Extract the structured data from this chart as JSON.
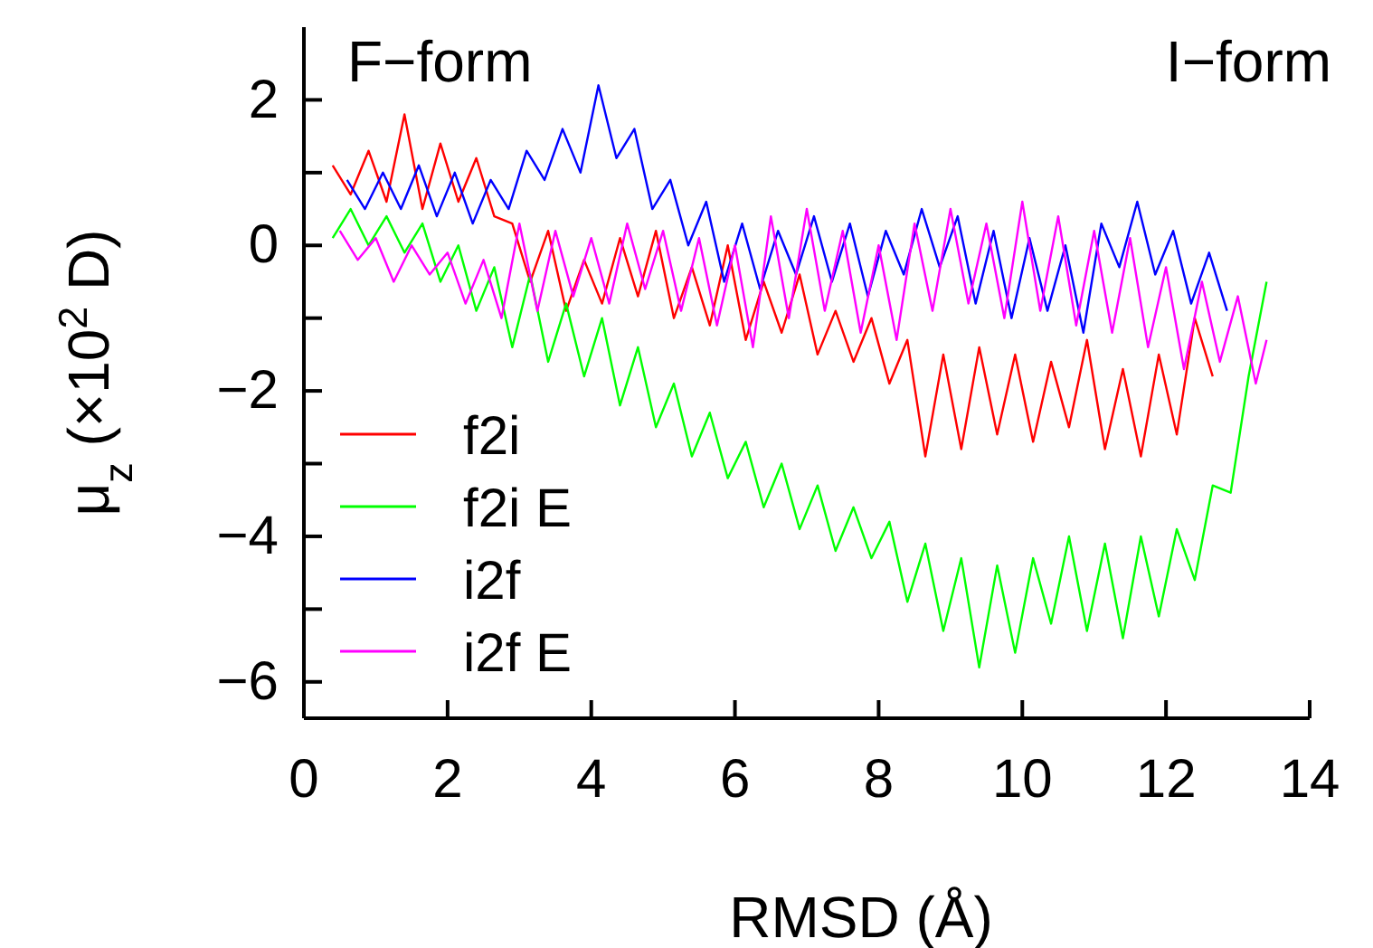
{
  "chart_data": {
    "type": "line",
    "xlabel": "RMSD (Å)",
    "ylabel": "μ$_{z}$ (×10$^{2}$ D)",
    "annotations": [
      "F−form",
      "I−form"
    ],
    "xlim": [
      0,
      14
    ],
    "xticks": [
      0,
      2,
      4,
      6,
      8,
      10,
      12,
      14
    ],
    "ylim": [
      -6.5,
      3
    ],
    "yticks": [
      {
        "value": -6,
        "label": "−6"
      },
      {
        "value": -5,
        "label": null
      },
      {
        "value": -4,
        "label": "−4"
      },
      {
        "value": -3,
        "label": null
      },
      {
        "value": -2,
        "label": "−2"
      },
      {
        "value": -1,
        "label": null
      },
      0,
      {
        "value": 1,
        "label": null
      },
      2
    ],
    "grid": false,
    "legend": "bottom left",
    "marker": "none",
    "line_style": "solid",
    "series": [
      {
        "name": "f2i",
        "color": "#ff0000",
        "x": [
          0.4,
          0.65,
          0.9,
          1.15,
          1.4,
          1.65,
          1.9,
          2.15,
          2.4,
          2.65,
          2.9,
          3.15,
          3.4,
          3.65,
          3.9,
          4.15,
          4.4,
          4.65,
          4.9,
          5.15,
          5.4,
          5.65,
          5.9,
          6.15,
          6.4,
          6.65,
          6.9,
          7.15,
          7.4,
          7.65,
          7.9,
          8.15,
          8.4,
          8.65,
          8.9,
          9.15,
          9.4,
          9.65,
          9.9,
          10.15,
          10.4,
          10.65,
          10.9,
          11.15,
          11.4,
          11.65,
          11.9,
          12.15,
          12.4,
          12.65
        ],
        "values": [
          1.1,
          0.7,
          1.3,
          0.6,
          1.8,
          0.5,
          1.4,
          0.6,
          1.2,
          0.4,
          0.3,
          -0.5,
          0.2,
          -0.9,
          -0.2,
          -0.8,
          0.1,
          -0.7,
          0.2,
          -1.0,
          -0.3,
          -1.1,
          0.0,
          -1.3,
          -0.5,
          -1.2,
          -0.4,
          -1.5,
          -0.9,
          -1.6,
          -1.0,
          -1.9,
          -1.3,
          -2.9,
          -1.5,
          -2.8,
          -1.4,
          -2.6,
          -1.5,
          -2.7,
          -1.6,
          -2.5,
          -1.3,
          -2.8,
          -1.7,
          -2.9,
          -1.5,
          -2.6,
          -1.0,
          -1.8
        ]
      },
      {
        "name": "f2i E",
        "color": "#00ff00",
        "x": [
          0.4,
          0.65,
          0.9,
          1.15,
          1.4,
          1.65,
          1.9,
          2.15,
          2.4,
          2.65,
          2.9,
          3.15,
          3.4,
          3.65,
          3.9,
          4.15,
          4.4,
          4.65,
          4.9,
          5.15,
          5.4,
          5.65,
          5.9,
          6.15,
          6.4,
          6.65,
          6.9,
          7.15,
          7.4,
          7.65,
          7.9,
          8.15,
          8.4,
          8.65,
          8.9,
          9.15,
          9.4,
          9.65,
          9.9,
          10.15,
          10.4,
          10.65,
          10.9,
          11.15,
          11.4,
          11.65,
          11.9,
          12.15,
          12.4,
          12.65,
          12.9,
          13.15,
          13.4
        ],
        "values": [
          0.1,
          0.5,
          0.0,
          0.4,
          -0.1,
          0.3,
          -0.5,
          0.0,
          -0.9,
          -0.3,
          -1.4,
          -0.4,
          -1.6,
          -0.8,
          -1.8,
          -1.0,
          -2.2,
          -1.4,
          -2.5,
          -1.9,
          -2.9,
          -2.3,
          -3.2,
          -2.7,
          -3.6,
          -3.0,
          -3.9,
          -3.3,
          -4.2,
          -3.6,
          -4.3,
          -3.8,
          -4.9,
          -4.1,
          -5.3,
          -4.3,
          -5.8,
          -4.4,
          -5.6,
          -4.3,
          -5.2,
          -4.0,
          -5.3,
          -4.1,
          -5.4,
          -4.0,
          -5.1,
          -3.9,
          -4.6,
          -3.3,
          -3.4,
          -1.8,
          -0.5
        ]
      },
      {
        "name": "i2f",
        "color": "#0000ff",
        "x": [
          0.6,
          0.85,
          1.1,
          1.35,
          1.6,
          1.85,
          2.1,
          2.35,
          2.6,
          2.85,
          3.1,
          3.35,
          3.6,
          3.85,
          4.1,
          4.35,
          4.6,
          4.85,
          5.1,
          5.35,
          5.6,
          5.85,
          6.1,
          6.35,
          6.6,
          6.85,
          7.1,
          7.35,
          7.6,
          7.85,
          8.1,
          8.35,
          8.6,
          8.85,
          9.1,
          9.35,
          9.6,
          9.85,
          10.1,
          10.35,
          10.6,
          10.85,
          11.1,
          11.35,
          11.6,
          11.85,
          12.1,
          12.35,
          12.6,
          12.85
        ],
        "values": [
          0.9,
          0.5,
          1.0,
          0.5,
          1.1,
          0.4,
          1.0,
          0.3,
          0.9,
          0.5,
          1.3,
          0.9,
          1.6,
          1.0,
          2.2,
          1.2,
          1.6,
          0.5,
          0.9,
          0.0,
          0.6,
          -0.5,
          0.3,
          -0.6,
          0.2,
          -0.4,
          0.4,
          -0.5,
          0.3,
          -0.7,
          0.2,
          -0.4,
          0.5,
          -0.3,
          0.4,
          -0.8,
          0.2,
          -1.0,
          0.1,
          -0.9,
          0.0,
          -1.2,
          0.3,
          -0.3,
          0.6,
          -0.4,
          0.2,
          -0.8,
          -0.1,
          -0.9
        ]
      },
      {
        "name": "i2f E",
        "color": "#ff00ff",
        "x": [
          0.5,
          0.75,
          1.0,
          1.25,
          1.5,
          1.75,
          2.0,
          2.25,
          2.5,
          2.75,
          3.0,
          3.25,
          3.5,
          3.75,
          4.0,
          4.25,
          4.5,
          4.75,
          5.0,
          5.25,
          5.5,
          5.75,
          6.0,
          6.25,
          6.5,
          6.75,
          7.0,
          7.25,
          7.5,
          7.75,
          8.0,
          8.25,
          8.5,
          8.75,
          9.0,
          9.25,
          9.5,
          9.75,
          10.0,
          10.25,
          10.5,
          10.75,
          11.0,
          11.25,
          11.5,
          11.75,
          12.0,
          12.25,
          12.5,
          12.75,
          13.0,
          13.25,
          13.4
        ],
        "values": [
          0.2,
          -0.2,
          0.1,
          -0.5,
          0.0,
          -0.4,
          -0.1,
          -0.8,
          -0.2,
          -1.0,
          0.3,
          -0.9,
          0.2,
          -0.7,
          0.1,
          -0.8,
          0.3,
          -0.6,
          0.2,
          -0.9,
          0.1,
          -1.1,
          0.0,
          -1.4,
          0.4,
          -1.0,
          0.5,
          -0.9,
          0.2,
          -1.2,
          0.0,
          -1.3,
          0.3,
          -0.9,
          0.5,
          -0.8,
          0.3,
          -1.0,
          0.6,
          -0.9,
          0.4,
          -1.1,
          0.2,
          -1.2,
          0.1,
          -1.4,
          -0.3,
          -1.7,
          -0.5,
          -1.6,
          -0.7,
          -1.9,
          -1.3
        ]
      }
    ]
  }
}
